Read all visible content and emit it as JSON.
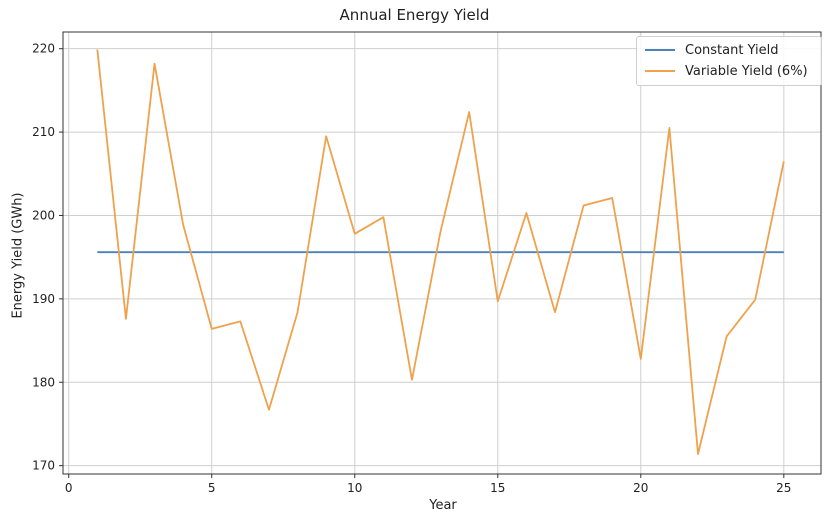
{
  "chart_data": {
    "type": "line",
    "title": "Annual Energy Yield",
    "xlabel": "Year",
    "ylabel": "Energy Yield (GWh)",
    "xlim": [
      -0.2,
      26.3
    ],
    "ylim": [
      169,
      222
    ],
    "xticks": [
      0,
      5,
      10,
      15,
      20,
      25
    ],
    "yticks": [
      170,
      180,
      190,
      200,
      210,
      220
    ],
    "grid": true,
    "legend_position": "top-right",
    "x": [
      1,
      2,
      3,
      4,
      5,
      6,
      7,
      8,
      9,
      10,
      11,
      12,
      13,
      14,
      15,
      16,
      17,
      18,
      19,
      20,
      21,
      22,
      23,
      24,
      25
    ],
    "series": [
      {
        "name": "Constant Yield",
        "color": "#4c82b8",
        "values": [
          195.6,
          195.6,
          195.6,
          195.6,
          195.6,
          195.6,
          195.6,
          195.6,
          195.6,
          195.6,
          195.6,
          195.6,
          195.6,
          195.6,
          195.6,
          195.6,
          195.6,
          195.6,
          195.6,
          195.6,
          195.6,
          195.6,
          195.6,
          195.6,
          195.6
        ]
      },
      {
        "name": "Variable Yield (6%)",
        "color": "#f0a14c",
        "values": [
          219.9,
          187.6,
          218.2,
          198.9,
          186.4,
          187.3,
          176.7,
          188.4,
          209.5,
          197.8,
          199.8,
          180.3,
          198.1,
          212.4,
          189.7,
          200.3,
          188.4,
          201.2,
          202.1,
          182.8,
          210.5,
          171.4,
          185.5,
          189.9,
          206.5
        ]
      }
    ]
  }
}
